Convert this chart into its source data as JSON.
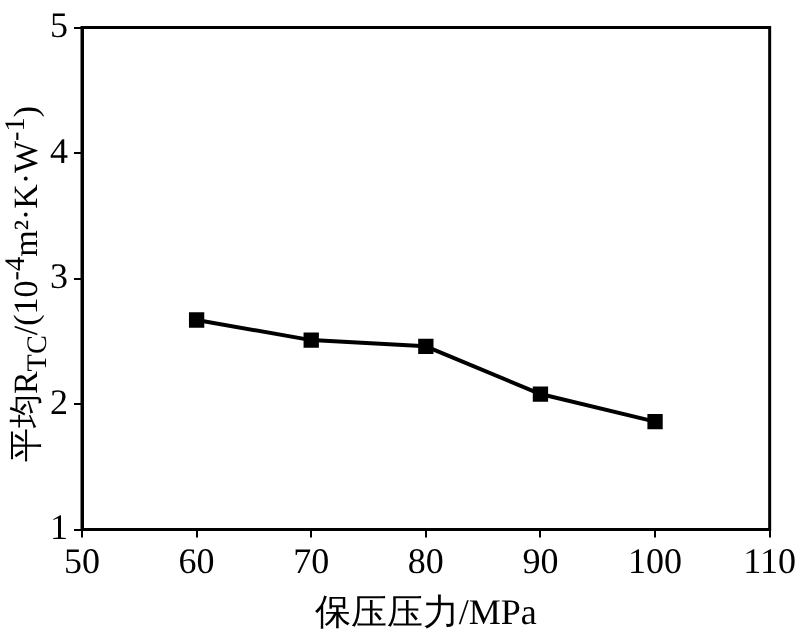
{
  "chart_data": {
    "type": "line",
    "xlabel": "保压压力/MPa",
    "ylabel": "平均R$_{TC}$/(10$^{-4}$m²·K·W$^{-1}$)",
    "x": [
      60,
      70,
      80,
      90,
      100
    ],
    "series": [
      {
        "color": "#000000",
        "values": [
          2.67,
          2.51,
          2.46,
          2.08,
          1.86
        ]
      }
    ],
    "xlim": [
      50,
      110
    ],
    "xticks": [
      50,
      60,
      70,
      80,
      90,
      100,
      110
    ],
    "ylim": [
      1,
      5
    ],
    "yticks": [
      1,
      2,
      3,
      4,
      5
    ],
    "grid": false,
    "legend": false,
    "marker": "square",
    "line_style": "solid"
  }
}
